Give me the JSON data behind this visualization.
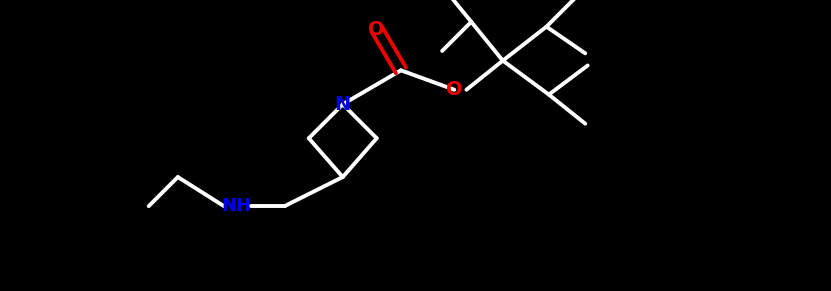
{
  "background_color": "#000000",
  "bond_color": "#ffffff",
  "blue": "#0000ee",
  "red": "#ee0000",
  "bond_width": 2.8,
  "figsize": [
    8.31,
    2.91
  ],
  "dpi": 100,
  "xlim": [
    0,
    16
  ],
  "ylim": [
    0,
    6
  ]
}
